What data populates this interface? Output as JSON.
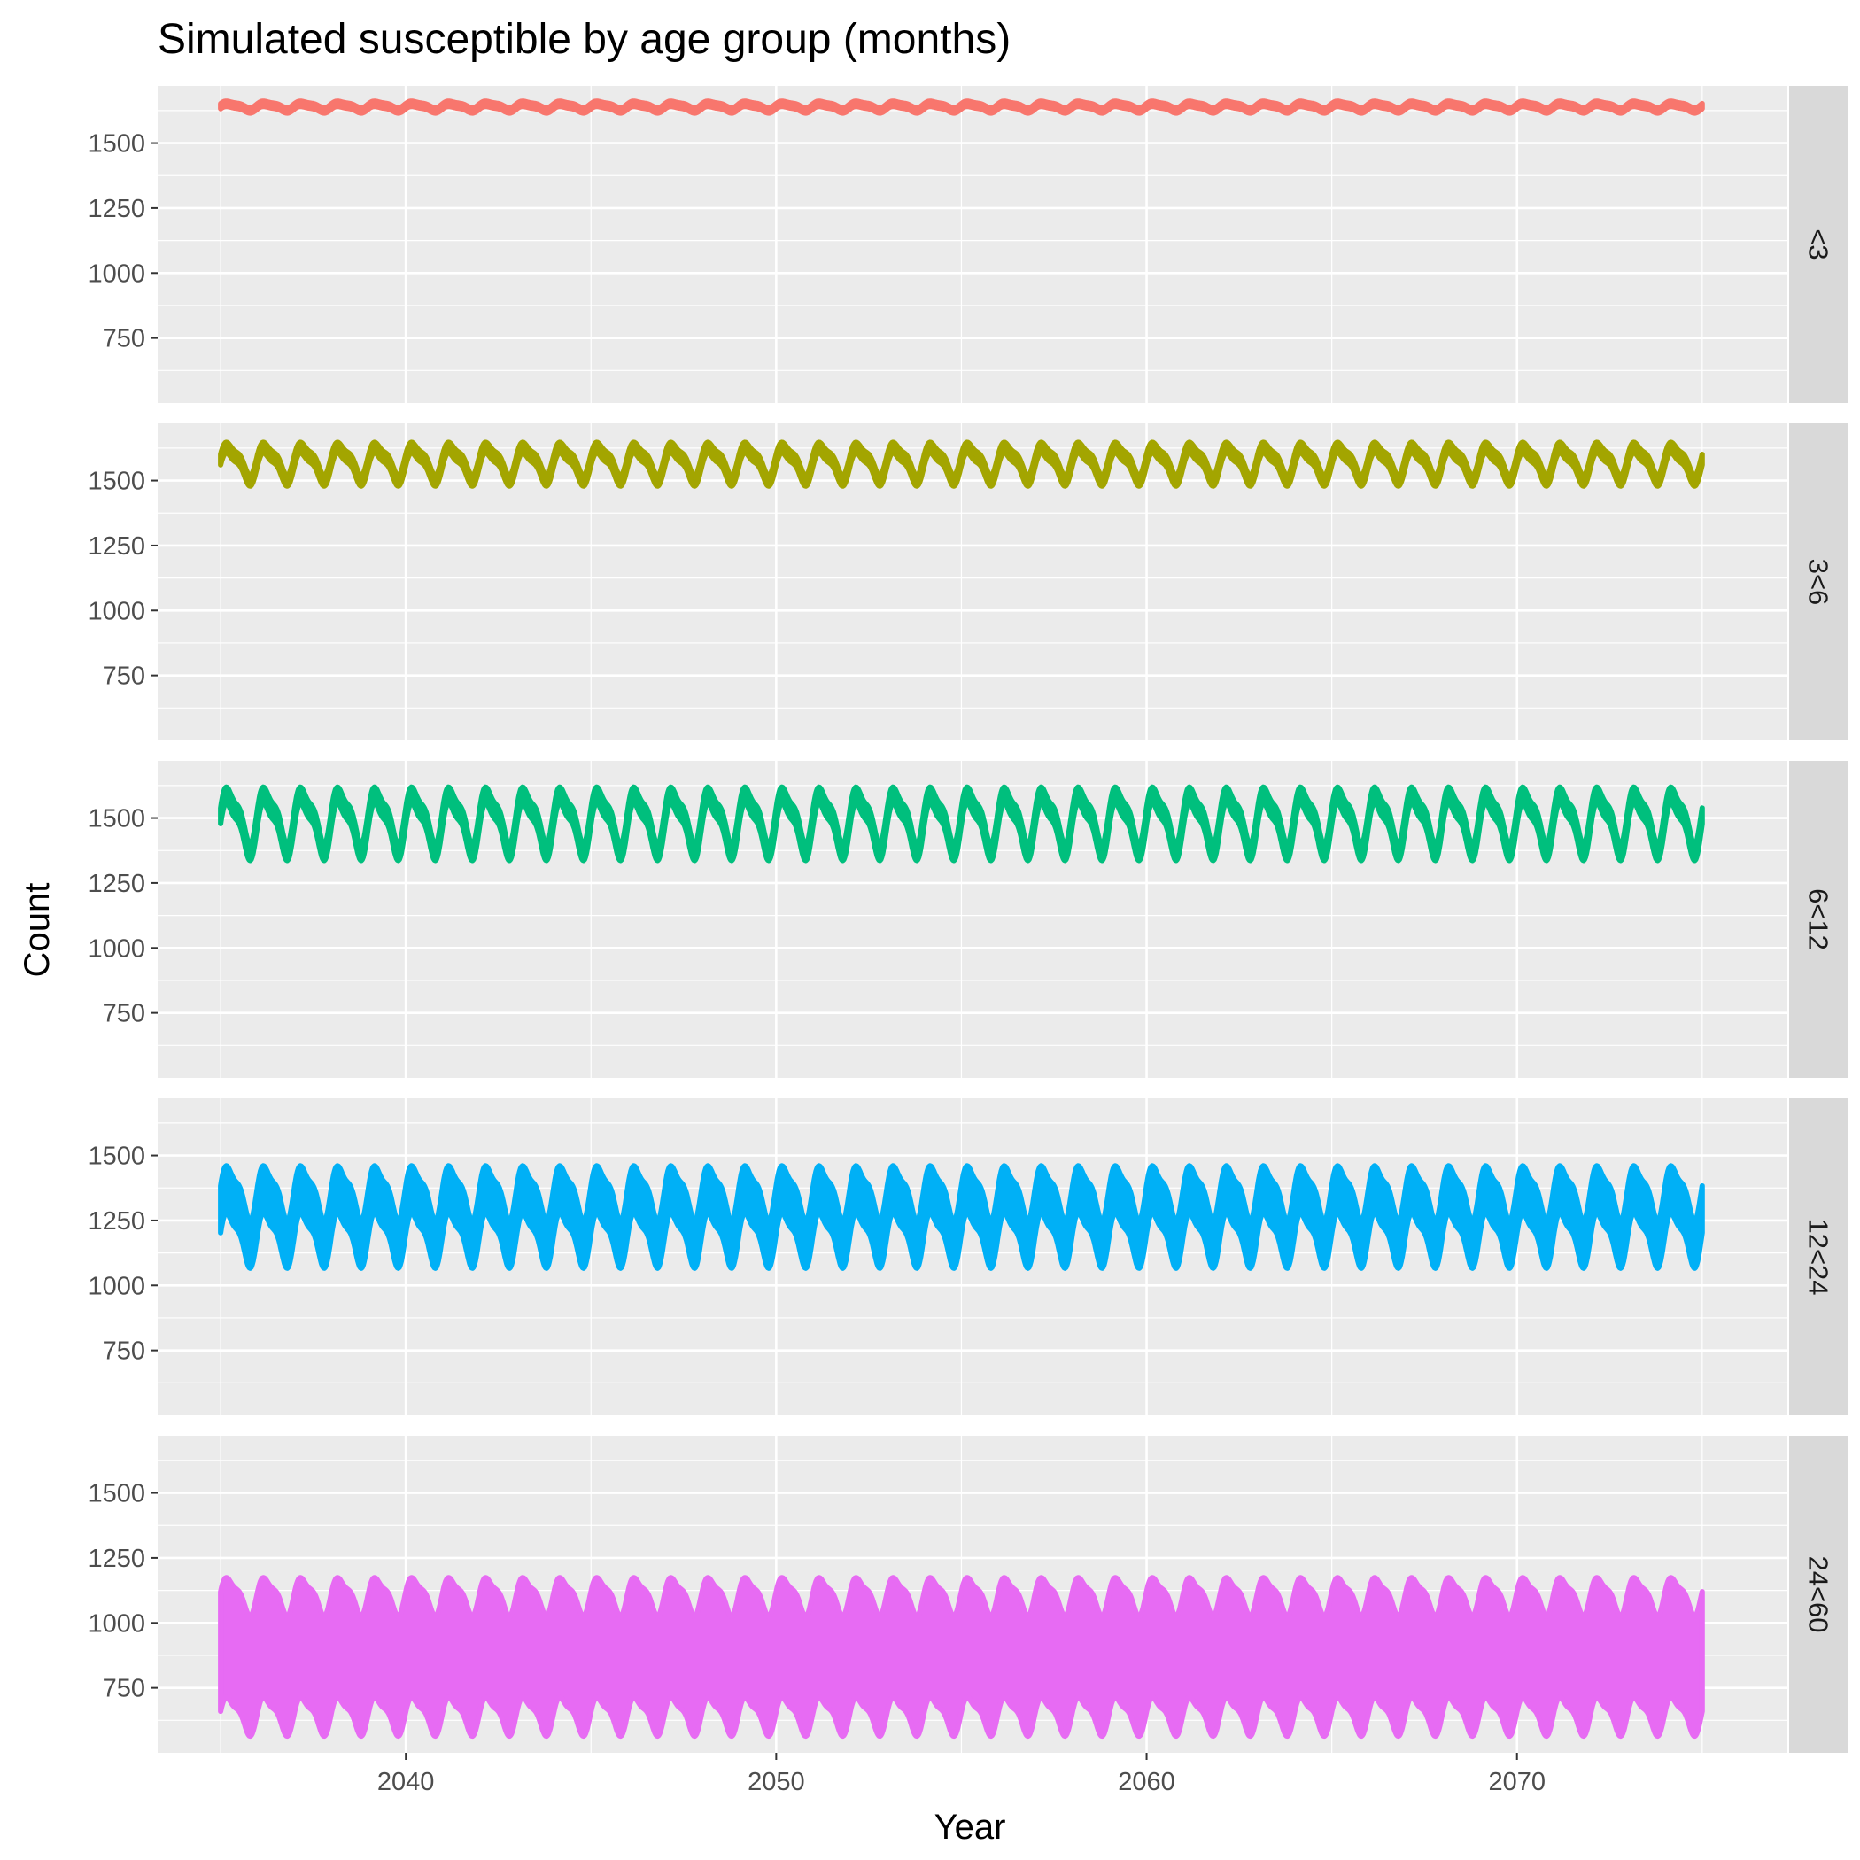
{
  "chart_data": {
    "type": "line",
    "title": "Simulated susceptible by age group (months)",
    "xlabel": "Year",
    "ylabel": "Count",
    "xlim": [
      2033.3,
      2077.3
    ],
    "ylim": [
      500,
      1720
    ],
    "x_ticks": [
      2040,
      2050,
      2060,
      2070
    ],
    "y_ticks": [
      750,
      1000,
      1250,
      1500
    ],
    "x_minor": [
      2035,
      2045,
      2055,
      2065,
      2075
    ],
    "y_minor": [
      625,
      875,
      1125,
      1375,
      1625
    ],
    "x_start": 2035,
    "x_end": 2075,
    "cycles_per_year": 1,
    "grid": true,
    "legend": "none",
    "facets": [
      {
        "name": "<3",
        "color": "#F8766D",
        "min": 1615,
        "max": 1665,
        "band": 20
      },
      {
        "name": "3<6",
        "color": "#A3A500",
        "min": 1475,
        "max": 1665,
        "band": 40
      },
      {
        "name": "6<12",
        "color": "#00BF7D",
        "min": 1330,
        "max": 1650,
        "band": 60
      },
      {
        "name": "12<24",
        "color": "#00B0F6",
        "min": 1060,
        "max": 1490,
        "band": 180
      },
      {
        "name": "24<60",
        "color": "#E76BF3",
        "min": 560,
        "max": 1195,
        "band": 460
      }
    ]
  }
}
